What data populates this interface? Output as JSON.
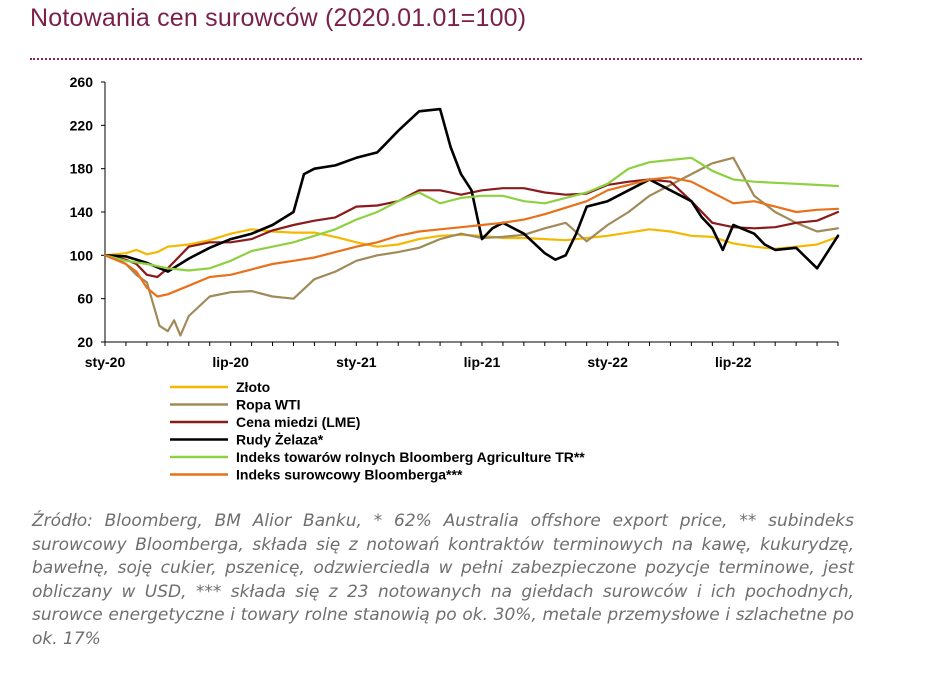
{
  "title": "Notowania cen surowców (2020.01.01=100)",
  "caption": "Źródło: Bloomberg, BM Alior Banku, * 62% Australia offshore export price, ** subindeks surowcowy Bloomberga, składa się z notowań kontraktów terminowych na kawę, kukurydzę, bawełnę, soję cukier, pszenicę, odzwierciedla w pełni zabezpieczone pozycje terminowe, jest obliczany w USD, *** składa się z 23 notowanych na giełdach surowców i ich pochodnych, surowce energetyczne i towary rolne stanowią po ok. 30%, metale przemysłowe i szlachetne po ok. 17%",
  "chart_data": {
    "type": "line",
    "x_unit": "month",
    "x_labels": [
      "sty-20",
      "lip-20",
      "sty-21",
      "lip-21",
      "sty-22",
      "lip-22"
    ],
    "x_range": [
      "2020-01",
      "2022-12"
    ],
    "ylim": [
      20,
      260
    ],
    "yticks": [
      20,
      60,
      100,
      140,
      180,
      220,
      260
    ],
    "legend_position": "bottom-left",
    "series": [
      {
        "name": "Złoto",
        "color": "#f5b800",
        "x": [
          0,
          1,
          1.5,
          2,
          2.5,
          3,
          4,
          5,
          6,
          7,
          8,
          9,
          10,
          11,
          12,
          13,
          14,
          15,
          16,
          17,
          18,
          19,
          20,
          21,
          22,
          23,
          24,
          25,
          26,
          27,
          28,
          29,
          30,
          31,
          32,
          33,
          34,
          35
        ],
        "y": [
          100,
          102,
          105,
          101,
          103,
          108,
          110,
          114,
          120,
          124,
          122,
          121,
          121,
          117,
          112,
          108,
          110,
          115,
          118,
          119,
          118,
          116,
          116,
          115,
          114,
          116,
          118,
          121,
          124,
          122,
          118,
          117,
          111,
          108,
          106,
          108,
          110,
          117
        ]
      },
      {
        "name": "Ropa WTI",
        "color": "#a08a5a",
        "x": [
          0,
          0.5,
          1,
          1.5,
          2,
          2.3,
          2.6,
          3,
          3.3,
          3.6,
          4,
          5,
          6,
          7,
          8,
          9,
          10,
          11,
          12,
          13,
          14,
          15,
          16,
          17,
          18,
          19,
          20,
          21,
          22,
          23,
          24,
          25,
          26,
          27,
          28,
          29,
          30,
          31,
          32,
          33,
          34,
          35
        ],
        "y": [
          100,
          97,
          92,
          82,
          75,
          55,
          35,
          30,
          40,
          26,
          44,
          62,
          66,
          67,
          62,
          60,
          78,
          85,
          95,
          100,
          103,
          107,
          115,
          120,
          116,
          117,
          119,
          125,
          130,
          113,
          128,
          140,
          155,
          165,
          175,
          185,
          190,
          155,
          140,
          130,
          122,
          125
        ]
      },
      {
        "name": "Cena miedzi (LME)",
        "color": "#8b1a1a",
        "x": [
          0,
          1,
          1.5,
          2,
          2.5,
          3,
          4,
          5,
          6,
          7,
          8,
          9,
          10,
          11,
          12,
          13,
          14,
          15,
          16,
          17,
          18,
          19,
          20,
          21,
          22,
          23,
          24,
          25,
          26,
          27,
          28,
          29,
          30,
          31,
          32,
          33,
          34,
          35
        ],
        "y": [
          100,
          96,
          92,
          82,
          80,
          88,
          108,
          112,
          112,
          115,
          123,
          128,
          132,
          135,
          145,
          146,
          150,
          160,
          160,
          156,
          160,
          162,
          162,
          158,
          156,
          157,
          165,
          168,
          170,
          168,
          150,
          130,
          126,
          125,
          126,
          130,
          132,
          140
        ]
      },
      {
        "name": "Rudy Żelaza*",
        "color": "#000000",
        "x": [
          0,
          1,
          2,
          3,
          4,
          5,
          6,
          7,
          8,
          9,
          9.5,
          10,
          11,
          12,
          13,
          14,
          15,
          16,
          16.5,
          17,
          17.5,
          18,
          18.5,
          19,
          20,
          21,
          21.5,
          22,
          22.5,
          23,
          24,
          25,
          26,
          27,
          28,
          28.5,
          29,
          29.5,
          30,
          31,
          31.5,
          32,
          33,
          34,
          35
        ],
        "y": [
          100,
          99,
          93,
          85,
          97,
          107,
          115,
          120,
          128,
          140,
          175,
          180,
          183,
          190,
          195,
          215,
          233,
          235,
          200,
          175,
          160,
          115,
          125,
          130,
          120,
          102,
          96,
          100,
          120,
          145,
          150,
          160,
          170,
          160,
          150,
          135,
          125,
          105,
          128,
          120,
          110,
          105,
          107,
          88,
          118
        ]
      },
      {
        "name": "Indeks towarów rolnych Bloomberg Agriculture TR**",
        "color": "#8ed140",
        "x": [
          0,
          1,
          2,
          3,
          4,
          5,
          6,
          7,
          8,
          9,
          10,
          11,
          12,
          13,
          14,
          15,
          16,
          17,
          18,
          19,
          20,
          21,
          22,
          23,
          24,
          25,
          26,
          27,
          28,
          29,
          30,
          31,
          32,
          33,
          34,
          35
        ],
        "y": [
          100,
          95,
          92,
          88,
          86,
          88,
          95,
          104,
          108,
          112,
          118,
          124,
          133,
          140,
          150,
          158,
          148,
          153,
          155,
          155,
          150,
          148,
          153,
          158,
          166,
          180,
          186,
          188,
          190,
          178,
          170,
          168,
          167,
          166,
          165,
          164
        ]
      },
      {
        "name": "Indeks surowcowy Bloomberga***",
        "color": "#e8711a",
        "x": [
          0,
          1,
          1.5,
          2,
          2.5,
          3,
          4,
          5,
          6,
          7,
          8,
          9,
          10,
          11,
          12,
          13,
          14,
          15,
          16,
          17,
          18,
          19,
          20,
          21,
          22,
          23,
          24,
          25,
          26,
          27,
          28,
          29,
          30,
          31,
          32,
          33,
          34,
          35
        ],
        "y": [
          100,
          92,
          85,
          70,
          62,
          64,
          72,
          80,
          82,
          87,
          92,
          95,
          98,
          103,
          108,
          112,
          118,
          122,
          124,
          126,
          128,
          130,
          133,
          138,
          144,
          150,
          160,
          165,
          170,
          172,
          168,
          158,
          148,
          150,
          145,
          140,
          142,
          143
        ]
      }
    ]
  }
}
